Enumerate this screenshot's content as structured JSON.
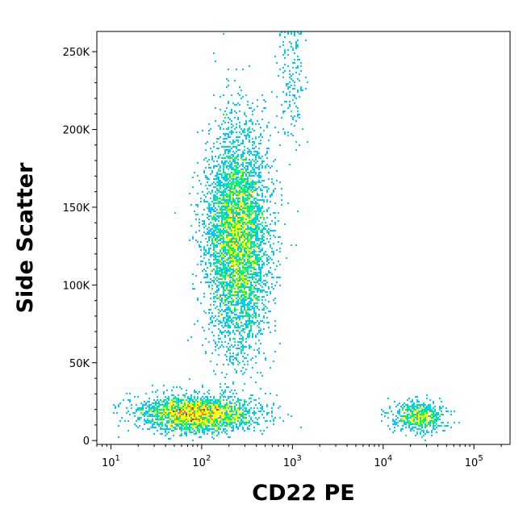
{
  "chart_data": {
    "type": "scatter",
    "title": "",
    "xlabel": "CD22 PE",
    "ylabel": "Side Scatter",
    "x_scale": "log",
    "xlim": [
      7,
      250000
    ],
    "ylim": [
      -2500,
      263000
    ],
    "x_tick_labels": [
      {
        "base": "10",
        "exp": "1",
        "value": 10
      },
      {
        "base": "10",
        "exp": "2",
        "value": 100
      },
      {
        "base": "10",
        "exp": "3",
        "value": 1000
      },
      {
        "base": "10",
        "exp": "4",
        "value": 10000
      },
      {
        "base": "10",
        "exp": "5",
        "value": 100000
      }
    ],
    "y_tick_labels": [
      {
        "label": "0",
        "value": 0
      },
      {
        "label": "50K",
        "value": 50000
      },
      {
        "label": "100K",
        "value": 100000
      },
      {
        "label": "150K",
        "value": 150000
      },
      {
        "label": "200K",
        "value": 200000
      },
      {
        "label": "250K",
        "value": 250000
      }
    ],
    "grid": false,
    "legend": "none",
    "density_colors": [
      "#0000ff",
      "#00c8ff",
      "#00ff64",
      "#ffff00",
      "#ff7800",
      "#ff0000"
    ],
    "populations": [
      {
        "x_center": 250,
        "y_center": 130000,
        "x_log_spread": 0.17,
        "y_spread": 35000,
        "approx_events": 5200
      },
      {
        "x_center": 90,
        "y_center": 17000,
        "x_log_spread": 0.3,
        "y_spread": 5500,
        "approx_events": 2800
      },
      {
        "x_center": 25000,
        "y_center": 15000,
        "x_log_spread": 0.14,
        "y_spread": 5000,
        "approx_events": 650
      },
      {
        "x_center": 1000,
        "y_center": 230000,
        "x_log_spread": 0.08,
        "y_spread": 22000,
        "approx_events": 160
      }
    ]
  }
}
